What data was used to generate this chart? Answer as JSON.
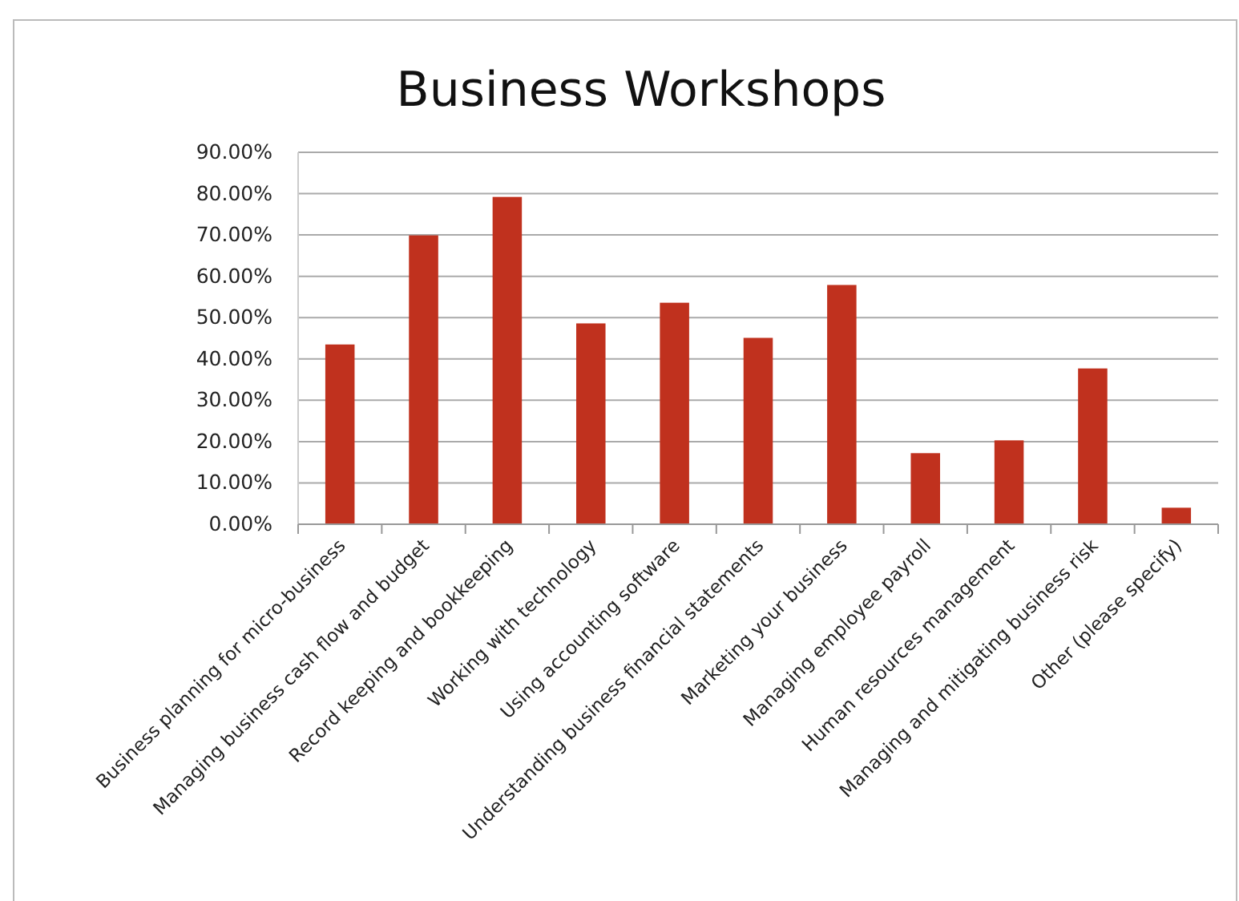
{
  "chart_data": {
    "type": "bar",
    "title": "Business Workshops",
    "categories": [
      "Business planning for micro-business",
      "Managing business cash flow and budget",
      "Record keeping and bookkeeping",
      "Working with technology",
      "Using accounting software",
      "Understanding business financial statements",
      "Marketing your business",
      "Managing employee payroll",
      "Human resources management",
      "Managing and mitigating business risk",
      "Other (please specify)"
    ],
    "values": [
      43.5,
      69.9,
      79.2,
      48.6,
      53.6,
      45.1,
      57.9,
      17.2,
      20.3,
      37.7,
      4.0
    ],
    "color": "#c0311e",
    "ylim": [
      0,
      90
    ],
    "yticks": [
      {
        "value": 0,
        "label": "0.00%"
      },
      {
        "value": 10,
        "label": "10.00%"
      },
      {
        "value": 20,
        "label": "20.00%"
      },
      {
        "value": 30,
        "label": "30.00%"
      },
      {
        "value": 40,
        "label": "40.00%"
      },
      {
        "value": 50,
        "label": "50.00%"
      },
      {
        "value": 60,
        "label": "60.00%"
      },
      {
        "value": 70,
        "label": "70.00%"
      },
      {
        "value": 80,
        "label": "80.00%"
      },
      {
        "value": 90,
        "label": "90.00%"
      }
    ],
    "grid": "y"
  }
}
